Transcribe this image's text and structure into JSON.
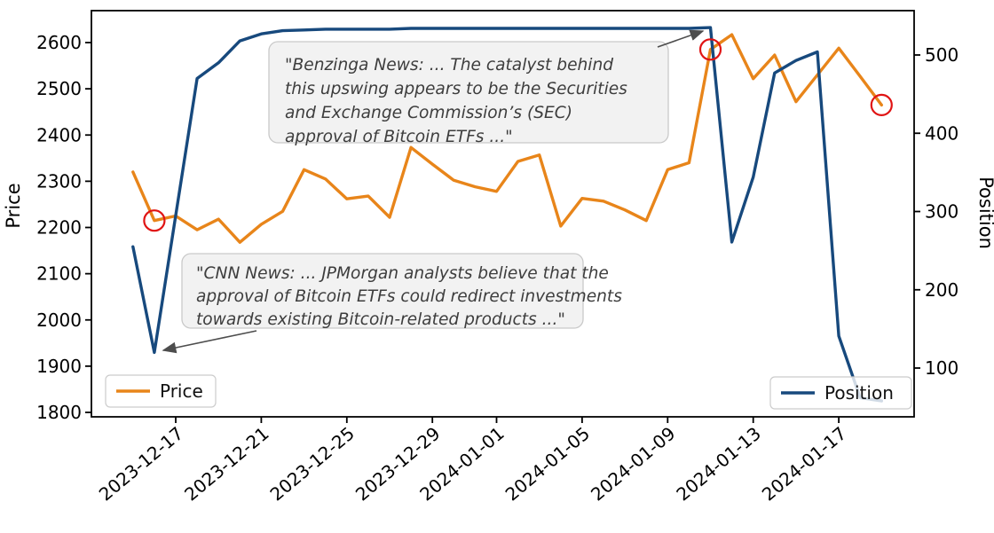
{
  "chart_data": {
    "type": "line",
    "title": "",
    "x": [
      "2023-12-15",
      "2023-12-16",
      "2023-12-17",
      "2023-12-18",
      "2023-12-19",
      "2023-12-20",
      "2023-12-21",
      "2023-12-22",
      "2023-12-23",
      "2023-12-24",
      "2023-12-25",
      "2023-12-26",
      "2023-12-27",
      "2023-12-28",
      "2023-12-29",
      "2023-12-30",
      "2023-12-31",
      "2024-01-01",
      "2024-01-02",
      "2024-01-03",
      "2024-01-04",
      "2024-01-05",
      "2024-01-06",
      "2024-01-07",
      "2024-01-08",
      "2024-01-09",
      "2024-01-10",
      "2024-01-11",
      "2024-01-12",
      "2024-01-13",
      "2024-01-14",
      "2024-01-15",
      "2024-01-16",
      "2024-01-17",
      "2024-01-18",
      "2024-01-19"
    ],
    "series": [
      {
        "name": "Price",
        "yaxis": "price",
        "color": "#e8851a",
        "linewidth": 3.4,
        "values": [
          2320,
          2215,
          2225,
          2195,
          2218,
          2168,
          2207,
          2235,
          2325,
          2305,
          2262,
          2268,
          2222,
          2373,
          2337,
          2302,
          2288,
          2278,
          2343,
          2357,
          2203,
          2263,
          2257,
          2238,
          2215,
          2325,
          2340,
          2585,
          2617,
          2522,
          2573,
          2472,
          2530,
          2588,
          2527,
          2465
        ]
      },
      {
        "name": "Position",
        "yaxis": "position",
        "color": "#17497d",
        "linewidth": 3.4,
        "values": [
          255,
          120,
          295,
          470,
          490,
          518,
          527,
          531,
          532,
          533,
          533,
          533,
          533,
          534,
          534,
          534,
          534,
          534,
          534,
          534,
          534,
          534,
          534,
          534,
          534,
          534,
          534,
          535,
          261,
          344,
          477,
          493,
          504,
          141,
          62,
          58
        ]
      }
    ],
    "left_axis": {
      "label": "Price",
      "ticks": [
        1800,
        1900,
        2000,
        2100,
        2200,
        2300,
        2400,
        2500,
        2600
      ],
      "range": [
        1800,
        2640
      ]
    },
    "right_axis": {
      "label": "Position",
      "ticks": [
        100,
        200,
        300,
        400,
        500
      ],
      "range": [
        57,
        541
      ]
    },
    "x_tick_labels": [
      "2023-12-17",
      "2023-12-21",
      "2023-12-25",
      "2023-12-29",
      "2024-01-01",
      "2024-01-05",
      "2024-01-09",
      "2024-01-13",
      "2024-01-17"
    ],
    "grid": false,
    "legend": [
      {
        "label": "Price",
        "position": "lower-left"
      },
      {
        "label": "Position",
        "position": "lower-right"
      }
    ],
    "markers": {
      "shape": "circle",
      "color": "#e01414",
      "series": "Price",
      "dates": [
        "2023-12-16",
        "2024-01-11",
        "2024-01-19"
      ]
    },
    "annotations": [
      {
        "id": "cnn",
        "lines": [
          "\"CNN News: ... JPMorgan analysts believe that the",
          "approval of Bitcoin ETFs could redirect investments",
          "towards existing Bitcoin-related products ...\""
        ],
        "arrow_target": {
          "date": "2023-12-16",
          "series": "Position"
        }
      },
      {
        "id": "benzinga",
        "lines": [
          "\"Benzinga News: ... The catalyst behind",
          "this upswing appears to be the Securities",
          "and Exchange Commission’s (SEC)",
          "approval of Bitcoin ETFs ...\""
        ],
        "arrow_target": {
          "date": "2024-01-11",
          "series": "Position"
        }
      }
    ],
    "colors": {
      "box_fill": "#f2f2f2",
      "box_border": "#c9c9c9",
      "arrow": "#4d4d4d",
      "spine": "#000000",
      "legend_border": "#cccccc"
    }
  }
}
